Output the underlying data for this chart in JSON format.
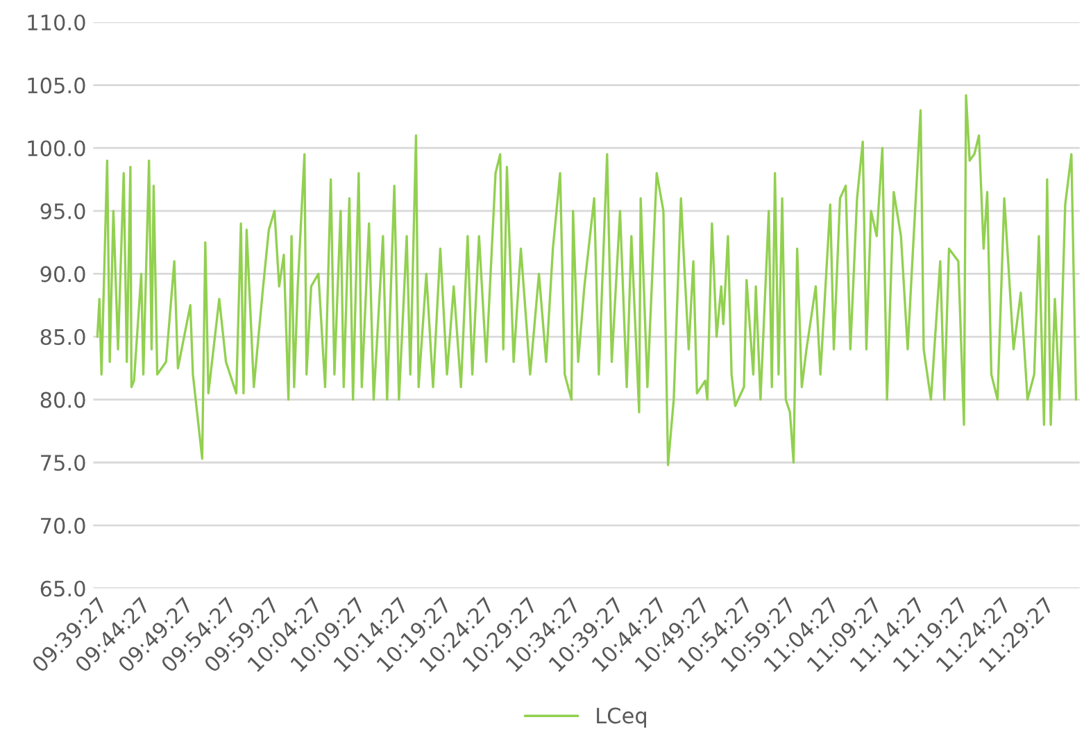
{
  "chart_data": {
    "type": "line",
    "x": [
      9.658,
      9.662,
      9.666,
      9.677,
      9.682,
      9.689,
      9.698,
      9.709,
      9.715,
      9.722,
      9.724,
      9.729,
      9.743,
      9.747,
      9.758,
      9.763,
      9.767,
      9.774,
      9.791,
      9.807,
      9.814,
      9.838,
      9.843,
      9.861,
      9.867,
      9.873,
      9.894,
      9.907,
      9.927,
      9.936,
      9.941,
      9.947,
      9.961,
      9.979,
      9.99,
      10.001,
      10.01,
      10.019,
      10.028,
      10.034,
      10.039,
      10.046,
      10.059,
      10.063,
      10.072,
      10.086,
      10.099,
      10.11,
      10.117,
      10.129,
      10.135,
      10.146,
      10.153,
      10.164,
      10.17,
      10.184,
      10.193,
      10.211,
      10.219,
      10.233,
      10.242,
      10.257,
      10.264,
      10.275,
      10.28,
      10.295,
      10.308,
      10.322,
      10.335,
      10.348,
      10.362,
      10.375,
      10.384,
      10.397,
      10.411,
      10.429,
      10.438,
      10.444,
      10.451,
      10.464,
      10.478,
      10.496,
      10.513,
      10.527,
      10.54,
      10.554,
      10.563,
      10.576,
      10.579,
      10.589,
      10.601,
      10.62,
      10.629,
      10.645,
      10.654,
      10.67,
      10.683,
      10.692,
      10.707,
      10.71,
      10.723,
      10.741,
      10.754,
      10.763,
      10.774,
      10.788,
      10.794,
      10.803,
      10.812,
      10.819,
      10.835,
      10.839,
      10.848,
      10.857,
      10.866,
      10.87,
      10.879,
      10.886,
      10.893,
      10.91,
      10.915,
      10.928,
      10.933,
      10.942,
      10.958,
      10.964,
      10.97,
      10.977,
      10.984,
      10.991,
      10.999,
      11.006,
      11.013,
      11.022,
      11.031,
      11.049,
      11.058,
      11.077,
      11.084,
      11.096,
      11.107,
      11.116,
      11.129,
      11.14,
      11.147,
      11.156,
      11.167,
      11.178,
      11.187,
      11.2,
      11.214,
      11.227,
      11.236,
      11.252,
      11.258,
      11.272,
      11.29,
      11.298,
      11.307,
      11.325,
      11.336,
      11.34,
      11.347,
      11.356,
      11.365,
      11.374,
      11.381,
      11.389,
      11.401,
      11.414,
      11.432,
      11.446,
      11.459,
      11.472,
      11.481,
      11.491,
      11.497,
      11.504,
      11.512,
      11.521,
      11.532,
      11.544,
      11.553
    ],
    "series": [
      {
        "name": "LCeq",
        "color": "#92d050",
        "values": [
          85,
          88,
          82,
          99,
          83,
          95,
          84,
          98,
          83,
          98.5,
          81,
          81.5,
          90,
          82,
          99,
          84,
          97,
          82,
          83,
          91,
          82.5,
          87.5,
          82,
          75.3,
          92.5,
          80.5,
          88,
          83,
          80.5,
          94,
          80.5,
          93.5,
          81,
          89,
          93.5,
          95,
          89,
          91.5,
          80,
          93,
          81,
          89,
          99.5,
          82,
          89,
          90,
          81,
          97.5,
          82,
          95,
          81,
          96,
          80,
          98,
          81,
          94,
          80,
          93,
          80,
          97,
          80,
          93,
          82,
          101,
          81,
          90,
          81,
          92,
          82,
          89,
          81,
          93,
          82,
          93,
          83,
          98,
          99.5,
          84,
          98.5,
          83,
          92,
          82,
          90,
          83,
          92,
          98,
          82,
          80,
          95,
          83,
          89,
          96,
          82,
          99.5,
          83,
          95,
          81,
          93,
          79,
          96,
          81,
          98,
          95,
          74.8,
          80,
          96,
          91,
          84,
          91,
          80.5,
          81.5,
          80,
          94,
          85,
          89,
          86,
          93,
          82,
          79.5,
          81,
          89.5,
          82,
          89,
          80,
          95,
          81,
          98,
          82,
          96,
          80,
          79,
          75,
          92,
          81,
          84,
          89,
          82,
          95.5,
          84,
          96,
          97,
          84,
          96,
          100.5,
          84,
          95,
          93,
          100,
          80,
          96.5,
          93,
          84,
          91,
          103,
          84,
          80,
          91,
          80,
          92,
          91,
          78,
          104.2,
          99,
          99.5,
          101,
          92,
          96.5,
          82,
          80,
          96,
          84,
          88.5,
          80,
          82,
          93,
          78,
          97.5,
          78,
          88,
          80,
          95.5,
          99.5,
          80
        ]
      }
    ],
    "xlim": [
      9.65,
      11.56
    ],
    "xticks": [
      {
        "value": 9.6575,
        "label": "09:39:27"
      },
      {
        "value": 9.74083,
        "label": "09:44:27"
      },
      {
        "value": 9.82417,
        "label": "09:49:27"
      },
      {
        "value": 9.9075,
        "label": "09:54:27"
      },
      {
        "value": 9.99083,
        "label": "09:59:27"
      },
      {
        "value": 10.07417,
        "label": "10:04:27"
      },
      {
        "value": 10.1575,
        "label": "10:09:27"
      },
      {
        "value": 10.24083,
        "label": "10:14:27"
      },
      {
        "value": 10.32417,
        "label": "10:19:27"
      },
      {
        "value": 10.4075,
        "label": "10:24:27"
      },
      {
        "value": 10.49083,
        "label": "10:29:27"
      },
      {
        "value": 10.57417,
        "label": "10:34:27"
      },
      {
        "value": 10.6575,
        "label": "10:39:27"
      },
      {
        "value": 10.74083,
        "label": "10:44:27"
      },
      {
        "value": 10.82417,
        "label": "10:49:27"
      },
      {
        "value": 10.9075,
        "label": "10:54:27"
      },
      {
        "value": 10.99083,
        "label": "10:59:27"
      },
      {
        "value": 11.07417,
        "label": "11:04:27"
      },
      {
        "value": 11.1575,
        "label": "11:09:27"
      },
      {
        "value": 11.24083,
        "label": "11:14:27"
      },
      {
        "value": 11.32417,
        "label": "11:19:27"
      },
      {
        "value": 11.4075,
        "label": "11:24:27"
      },
      {
        "value": 11.49083,
        "label": "11:29:27"
      }
    ],
    "ylim": [
      65,
      110
    ],
    "yticks": [
      {
        "value": 65,
        "label": "65.0"
      },
      {
        "value": 70,
        "label": "70.0"
      },
      {
        "value": 75,
        "label": "75.0"
      },
      {
        "value": 80,
        "label": "80.0"
      },
      {
        "value": 85,
        "label": "85.0"
      },
      {
        "value": 90,
        "label": "90.0"
      },
      {
        "value": 95,
        "label": "95.0"
      },
      {
        "value": 100,
        "label": "100.0"
      },
      {
        "value": 105,
        "label": "105.0"
      },
      {
        "value": 110,
        "label": "110.0"
      }
    ],
    "grid": "y",
    "legend": "bottom",
    "marker": "none",
    "line_style": "solid"
  }
}
